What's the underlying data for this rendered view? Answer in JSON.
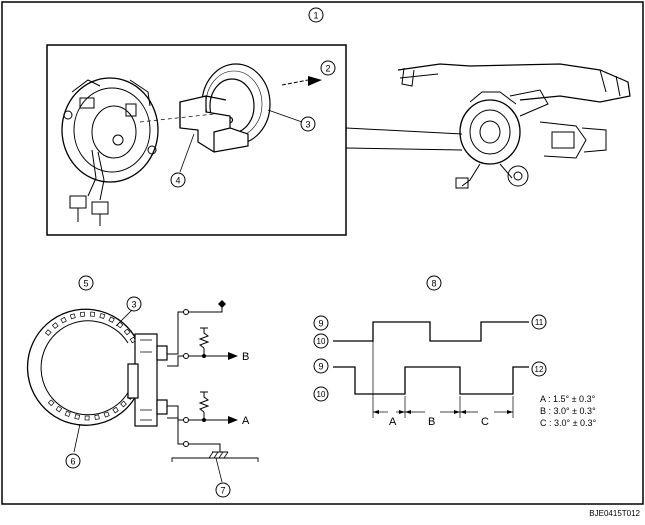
{
  "callouts": {
    "c1": "1",
    "c2": "2",
    "c3": "3",
    "c4": "4",
    "c5": "5",
    "c6": "6",
    "c7": "7",
    "c8": "8",
    "c9": "9",
    "c10": "10",
    "c11": "11",
    "c12": "12"
  },
  "circuit": {
    "label_b": "B",
    "label_a": "A"
  },
  "timing": {
    "segment_a": "A",
    "segment_b": "B",
    "segment_c": "C",
    "spec_a": "A : 1.5° ± 0.3°",
    "spec_b": "B : 3.0° ± 0.3°",
    "spec_c": "C : 3.0° ± 0.3°"
  },
  "figure_code": "BJE0415T012",
  "colors": {
    "ink": "#000000",
    "background": "#ffffff"
  }
}
